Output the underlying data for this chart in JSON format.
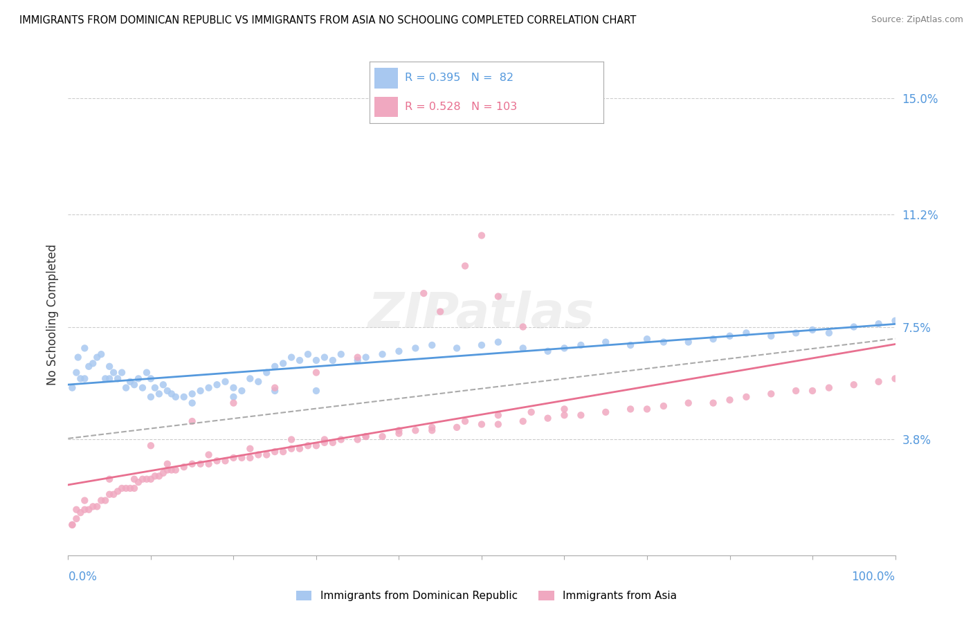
{
  "title": "IMMIGRANTS FROM DOMINICAN REPUBLIC VS IMMIGRANTS FROM ASIA NO SCHOOLING COMPLETED CORRELATION CHART",
  "source": "Source: ZipAtlas.com",
  "ylabel": "No Schooling Completed",
  "color_blue": "#A8C8F0",
  "color_pink": "#F0A8C0",
  "color_blue_line": "#5599DD",
  "color_pink_line": "#E87090",
  "color_dashed": "#AAAAAA",
  "legend_blue_r": "0.395",
  "legend_blue_n": "82",
  "legend_pink_r": "0.528",
  "legend_pink_n": "103",
  "right_ytick_vals": [
    0.0,
    0.038,
    0.075,
    0.112,
    0.15
  ],
  "right_ytick_labels": [
    "",
    "3.8%",
    "7.5%",
    "11.2%",
    "15.0%"
  ],
  "xlim": [
    0,
    100
  ],
  "ylim": [
    0,
    0.158
  ],
  "watermark": "ZIPatlas",
  "blue_x": [
    0.5,
    1.0,
    1.2,
    1.5,
    2.0,
    2.5,
    3.0,
    3.5,
    4.0,
    4.5,
    5.0,
    5.5,
    6.0,
    6.5,
    7.0,
    7.5,
    8.0,
    8.5,
    9.0,
    9.5,
    10.0,
    10.5,
    11.0,
    11.5,
    12.0,
    12.5,
    13.0,
    14.0,
    15.0,
    16.0,
    17.0,
    18.0,
    19.0,
    20.0,
    21.0,
    22.0,
    23.0,
    24.0,
    25.0,
    26.0,
    27.0,
    28.0,
    29.0,
    30.0,
    31.0,
    32.0,
    33.0,
    35.0,
    36.0,
    38.0,
    40.0,
    42.0,
    44.0,
    47.0,
    50.0,
    52.0,
    55.0,
    58.0,
    60.0,
    62.0,
    65.0,
    68.0,
    70.0,
    72.0,
    75.0,
    78.0,
    80.0,
    82.0,
    85.0,
    88.0,
    90.0,
    92.0,
    95.0,
    98.0,
    100.0,
    30.0,
    25.0,
    20.0,
    15.0,
    10.0,
    5.0,
    2.0
  ],
  "blue_y": [
    0.055,
    0.06,
    0.065,
    0.058,
    0.068,
    0.062,
    0.063,
    0.065,
    0.066,
    0.058,
    0.062,
    0.06,
    0.058,
    0.06,
    0.055,
    0.057,
    0.056,
    0.058,
    0.055,
    0.06,
    0.058,
    0.055,
    0.053,
    0.056,
    0.054,
    0.053,
    0.052,
    0.052,
    0.053,
    0.054,
    0.055,
    0.056,
    0.057,
    0.055,
    0.054,
    0.058,
    0.057,
    0.06,
    0.062,
    0.063,
    0.065,
    0.064,
    0.066,
    0.064,
    0.065,
    0.064,
    0.066,
    0.064,
    0.065,
    0.066,
    0.067,
    0.068,
    0.069,
    0.068,
    0.069,
    0.07,
    0.068,
    0.067,
    0.068,
    0.069,
    0.07,
    0.069,
    0.071,
    0.07,
    0.07,
    0.071,
    0.072,
    0.073,
    0.072,
    0.073,
    0.074,
    0.073,
    0.075,
    0.076,
    0.077,
    0.054,
    0.054,
    0.052,
    0.05,
    0.052,
    0.058,
    0.058
  ],
  "pink_x": [
    0.5,
    1.0,
    1.5,
    2.0,
    2.5,
    3.0,
    3.5,
    4.0,
    4.5,
    5.0,
    5.5,
    6.0,
    6.5,
    7.0,
    7.5,
    8.0,
    8.5,
    9.0,
    9.5,
    10.0,
    10.5,
    11.0,
    11.5,
    12.0,
    12.5,
    13.0,
    14.0,
    15.0,
    16.0,
    17.0,
    18.0,
    19.0,
    20.0,
    21.0,
    22.0,
    23.0,
    24.0,
    25.0,
    26.0,
    27.0,
    28.0,
    29.0,
    30.0,
    31.0,
    32.0,
    33.0,
    35.0,
    36.0,
    38.0,
    40.0,
    42.0,
    44.0,
    47.0,
    50.0,
    52.0,
    55.0,
    58.0,
    60.0,
    62.0,
    65.0,
    68.0,
    70.0,
    72.0,
    75.0,
    78.0,
    80.0,
    82.0,
    85.0,
    88.0,
    90.0,
    92.0,
    95.0,
    98.0,
    100.0,
    43.0,
    45.0,
    48.0,
    50.0,
    52.0,
    55.0,
    35.0,
    30.0,
    25.0,
    20.0,
    15.0,
    10.0,
    5.0,
    2.0,
    1.0,
    0.5,
    8.0,
    12.0,
    17.0,
    22.0,
    27.0,
    31.0,
    36.0,
    40.0,
    44.0,
    48.0,
    52.0,
    56.0,
    60.0
  ],
  "pink_y": [
    0.01,
    0.012,
    0.014,
    0.015,
    0.015,
    0.016,
    0.016,
    0.018,
    0.018,
    0.02,
    0.02,
    0.021,
    0.022,
    0.022,
    0.022,
    0.022,
    0.024,
    0.025,
    0.025,
    0.025,
    0.026,
    0.026,
    0.027,
    0.028,
    0.028,
    0.028,
    0.029,
    0.03,
    0.03,
    0.03,
    0.031,
    0.031,
    0.032,
    0.032,
    0.032,
    0.033,
    0.033,
    0.034,
    0.034,
    0.035,
    0.035,
    0.036,
    0.036,
    0.037,
    0.037,
    0.038,
    0.038,
    0.039,
    0.039,
    0.04,
    0.041,
    0.041,
    0.042,
    0.043,
    0.043,
    0.044,
    0.045,
    0.046,
    0.046,
    0.047,
    0.048,
    0.048,
    0.049,
    0.05,
    0.05,
    0.051,
    0.052,
    0.053,
    0.054,
    0.054,
    0.055,
    0.056,
    0.057,
    0.058,
    0.086,
    0.08,
    0.095,
    0.105,
    0.085,
    0.075,
    0.065,
    0.06,
    0.055,
    0.05,
    0.044,
    0.036,
    0.025,
    0.018,
    0.015,
    0.01,
    0.025,
    0.03,
    0.033,
    0.035,
    0.038,
    0.038,
    0.039,
    0.041,
    0.042,
    0.044,
    0.046,
    0.047,
    0.048
  ]
}
